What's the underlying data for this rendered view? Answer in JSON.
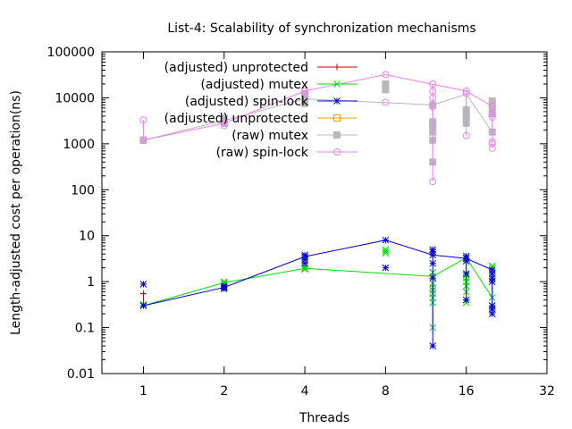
{
  "chart_data": {
    "type": "scatter",
    "title": "List-4: Scalability of synchronization mechanisms",
    "xlabel": "Threads",
    "ylabel": "Length-adjusted cost per operation(ns)",
    "x_scale": "log2",
    "y_scale": "log10",
    "xlim": [
      0.7,
      32
    ],
    "ylim": [
      0.01,
      100000
    ],
    "x_ticks": [
      1,
      2,
      4,
      8,
      16,
      32
    ],
    "y_ticks": [
      0.01,
      0.1,
      1,
      10,
      100,
      1000,
      10000,
      100000
    ],
    "x_tick_labels": [
      "1",
      "2",
      "4",
      "8",
      "16",
      "32"
    ],
    "y_tick_labels": [
      "0.01",
      "0.1",
      "1",
      "10",
      "100",
      "1000",
      "10000",
      "100000"
    ],
    "grid": false,
    "legend_position": "top-left",
    "series": [
      {
        "name": "(adjusted) unprotected",
        "color": "#cc0000",
        "marker": "plus",
        "points": [
          [
            1,
            0.55
          ],
          [
            1,
            0.3
          ]
        ],
        "line": [
          [
            1,
            0.3
          ]
        ],
        "errorbars": [
          {
            "x": 1,
            "lo": 0.3,
            "hi": 0.55
          }
        ]
      },
      {
        "name": "(adjusted) mutex",
        "color": "#00dd00",
        "marker": "x",
        "points": [
          [
            1,
            0.3
          ],
          [
            1,
            0.32
          ],
          [
            2,
            0.95
          ],
          [
            2,
            1.0
          ],
          [
            2,
            0.88
          ],
          [
            4,
            1.85
          ],
          [
            4,
            1.95
          ],
          [
            4,
            2.1
          ],
          [
            8,
            4.2
          ],
          [
            8,
            4.6
          ],
          [
            8,
            5.0
          ],
          [
            12,
            0.1
          ],
          [
            12,
            0.35
          ],
          [
            12,
            0.45
          ],
          [
            12,
            0.55
          ],
          [
            12,
            0.65
          ],
          [
            12,
            0.75
          ],
          [
            12,
            0.9
          ],
          [
            12,
            1.3
          ],
          [
            12,
            1.6
          ],
          [
            16,
            0.35
          ],
          [
            16,
            0.6
          ],
          [
            16,
            0.8
          ],
          [
            16,
            1.0
          ],
          [
            16,
            1.2
          ],
          [
            16,
            1.4
          ],
          [
            16,
            3.3
          ],
          [
            20,
            0.3
          ],
          [
            20,
            0.45
          ],
          [
            20,
            1.2
          ],
          [
            20,
            2.0
          ],
          [
            20,
            2.2
          ]
        ],
        "line": [
          [
            1,
            0.3
          ],
          [
            2,
            0.95
          ],
          [
            4,
            1.95
          ],
          [
            12,
            1.3
          ],
          [
            16,
            3.3
          ],
          [
            20,
            0.45
          ]
        ],
        "errorbars": [
          {
            "x": 12,
            "lo": 0.1,
            "hi": 1.6
          },
          {
            "x": 16,
            "lo": 0.35,
            "hi": 3.3
          },
          {
            "x": 20,
            "lo": 0.3,
            "hi": 2.2
          }
        ]
      },
      {
        "name": "(adjusted) spin-lock",
        "color": "#0000cc",
        "marker": "star",
        "points": [
          [
            1,
            0.3
          ],
          [
            1,
            0.88
          ],
          [
            2,
            0.7
          ],
          [
            2,
            0.75
          ],
          [
            2,
            0.8
          ],
          [
            4,
            2.5
          ],
          [
            4,
            3.0
          ],
          [
            4,
            3.5
          ],
          [
            4,
            3.8
          ],
          [
            8,
            2.0
          ],
          [
            8,
            8.0
          ],
          [
            12,
            0.04
          ],
          [
            12,
            1.2
          ],
          [
            12,
            2.5
          ],
          [
            12,
            3.8
          ],
          [
            12,
            4.5
          ],
          [
            12,
            5.0
          ],
          [
            16,
            0.4
          ],
          [
            16,
            1.5
          ],
          [
            16,
            2.8
          ],
          [
            16,
            3.2
          ],
          [
            16,
            3.6
          ],
          [
            20,
            0.2
          ],
          [
            20,
            0.25
          ],
          [
            20,
            0.3
          ],
          [
            20,
            1.0
          ],
          [
            20,
            1.2
          ],
          [
            20,
            1.5
          ],
          [
            20,
            1.8
          ]
        ],
        "line": [
          [
            1,
            0.3
          ],
          [
            2,
            0.75
          ],
          [
            4,
            3.5
          ],
          [
            8,
            8.0
          ],
          [
            12,
            3.8
          ],
          [
            16,
            3.2
          ],
          [
            20,
            1.8
          ]
        ],
        "errorbars": [
          {
            "x": 12,
            "lo": 0.04,
            "hi": 5.0
          },
          {
            "x": 16,
            "lo": 0.4,
            "hi": 3.6
          },
          {
            "x": 20,
            "lo": 0.2,
            "hi": 1.8
          }
        ]
      },
      {
        "name": "(adjusted) unprotected",
        "color": "#e8a000",
        "marker": "square-open",
        "points": [
          [
            1,
            1200
          ]
        ],
        "line": [],
        "errorbars": []
      },
      {
        "name": "(raw) mutex",
        "color": "#b8b8b8",
        "marker": "square-filled",
        "points": [
          [
            1,
            1200
          ],
          [
            2,
            2800
          ],
          [
            2,
            3200
          ],
          [
            2,
            3600
          ],
          [
            4,
            7500
          ],
          [
            4,
            9500
          ],
          [
            4,
            11000
          ],
          [
            4,
            12500
          ],
          [
            8,
            15000
          ],
          [
            8,
            17000
          ],
          [
            8,
            20000
          ],
          [
            12,
            400
          ],
          [
            12,
            1200
          ],
          [
            12,
            1800
          ],
          [
            12,
            2500
          ],
          [
            12,
            3000
          ],
          [
            12,
            7000
          ],
          [
            16,
            2800
          ],
          [
            16,
            3500
          ],
          [
            16,
            4500
          ],
          [
            16,
            5500
          ],
          [
            20,
            1800
          ],
          [
            20,
            4500
          ],
          [
            20,
            5500
          ],
          [
            20,
            7000
          ],
          [
            20,
            8500
          ]
        ],
        "line": [
          [
            1,
            1200
          ],
          [
            2,
            3200
          ],
          [
            4,
            9500
          ],
          [
            12,
            7000
          ],
          [
            16,
            12000
          ],
          [
            20,
            1800
          ]
        ],
        "errorbars": [
          {
            "x": 12,
            "lo": 400,
            "hi": 7000
          },
          {
            "x": 16,
            "lo": 2800,
            "hi": 12000
          },
          {
            "x": 20,
            "lo": 1800,
            "hi": 8500
          }
        ]
      },
      {
        "name": "(raw) spin-lock",
        "color": "#ee82ee",
        "marker": "circle-open",
        "points": [
          [
            1,
            1200
          ],
          [
            1,
            3300
          ],
          [
            2,
            2500
          ],
          [
            2,
            2800
          ],
          [
            4,
            12000
          ],
          [
            4,
            14000
          ],
          [
            8,
            8000
          ],
          [
            8,
            32000
          ],
          [
            12,
            150
          ],
          [
            12,
            6500
          ],
          [
            12,
            10000
          ],
          [
            12,
            14000
          ],
          [
            12,
            20000
          ],
          [
            16,
            1500
          ],
          [
            16,
            12500
          ],
          [
            16,
            14000
          ],
          [
            20,
            800
          ],
          [
            20,
            1000
          ],
          [
            20,
            1100
          ],
          [
            20,
            3800
          ],
          [
            20,
            4500
          ],
          [
            20,
            6500
          ]
        ],
        "line": [
          [
            1,
            1200
          ],
          [
            2,
            2800
          ],
          [
            4,
            14000
          ],
          [
            8,
            32000
          ],
          [
            16,
            14000
          ],
          [
            20,
            6500
          ]
        ],
        "errorbars": [
          {
            "x": 1,
            "lo": 1200,
            "hi": 3300
          },
          {
            "x": 12,
            "lo": 150,
            "hi": 20000
          },
          {
            "x": 16,
            "lo": 1500,
            "hi": 14000
          },
          {
            "x": 20,
            "lo": 800,
            "hi": 6500
          }
        ]
      }
    ]
  }
}
